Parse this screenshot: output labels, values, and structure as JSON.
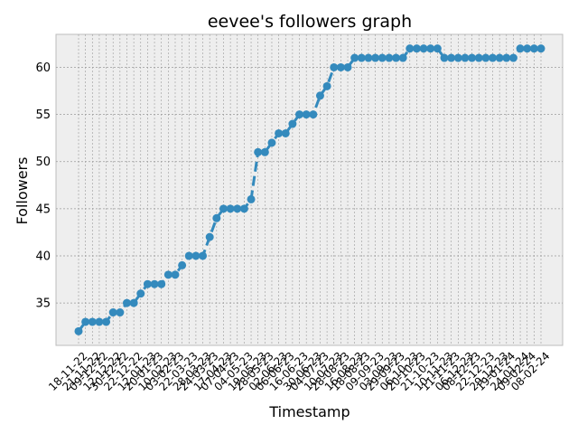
{
  "chart_data": {
    "type": "line",
    "title": "eevee's followers graph",
    "xlabel": "Timestamp",
    "ylabel": "Followers",
    "ylim": [
      30.5,
      63.5
    ],
    "yticks": [
      35,
      40,
      45,
      50,
      55,
      60
    ],
    "grid": true,
    "line_style": "dashed",
    "marker": "circle",
    "colors": {
      "series": "#348ABD",
      "plot_bg": "#EEEEEE",
      "grid": "#9A9A9A",
      "frame": "#BCBCBC"
    },
    "x_tick_labels": [
      "18-11-22",
      "21-11-22",
      "09-12-22",
      "12-12-22",
      "30-12-22",
      "22-12-22",
      "12-01-23",
      "20-01-23",
      "10-02-23",
      "03-02-23",
      "22-03-23",
      "28-03-23",
      "24-03-23",
      "17-04-23",
      "07-04-23",
      "04-05-23",
      "19-05-23",
      "28-05-23",
      "02-06-23",
      "06-06-23",
      "16-06-23",
      "30-06-23",
      "04-07-23",
      "10-07-23",
      "28-08-23",
      "16-08-23",
      "18-08-23",
      "09-09-23",
      "03-09-23",
      "29-09-23",
      "06-10-23",
      "20-10-23",
      "21-10-23",
      "10-11-23",
      "11-11-23",
      "06-12-23",
      "08-12-23",
      "22-12-23",
      "29-12-23",
      "19-01-24",
      "24-01-24",
      "09-02-24",
      "08-02-24"
    ],
    "series": [
      {
        "values": [
          32,
          33,
          33,
          33,
          33,
          34,
          34,
          35,
          35,
          36,
          37,
          37,
          37,
          38,
          38,
          39,
          40,
          40,
          40,
          42,
          44,
          45,
          45,
          45,
          45,
          46,
          51,
          51,
          52,
          53,
          53,
          54,
          55,
          55,
          55,
          57,
          58,
          60,
          60,
          60,
          61,
          61,
          61,
          61,
          61,
          61,
          61,
          61,
          62,
          62,
          62,
          62,
          62,
          61,
          61,
          61,
          61,
          61,
          61,
          61,
          61,
          61,
          61,
          61,
          62,
          62,
          62,
          62
        ]
      }
    ]
  }
}
